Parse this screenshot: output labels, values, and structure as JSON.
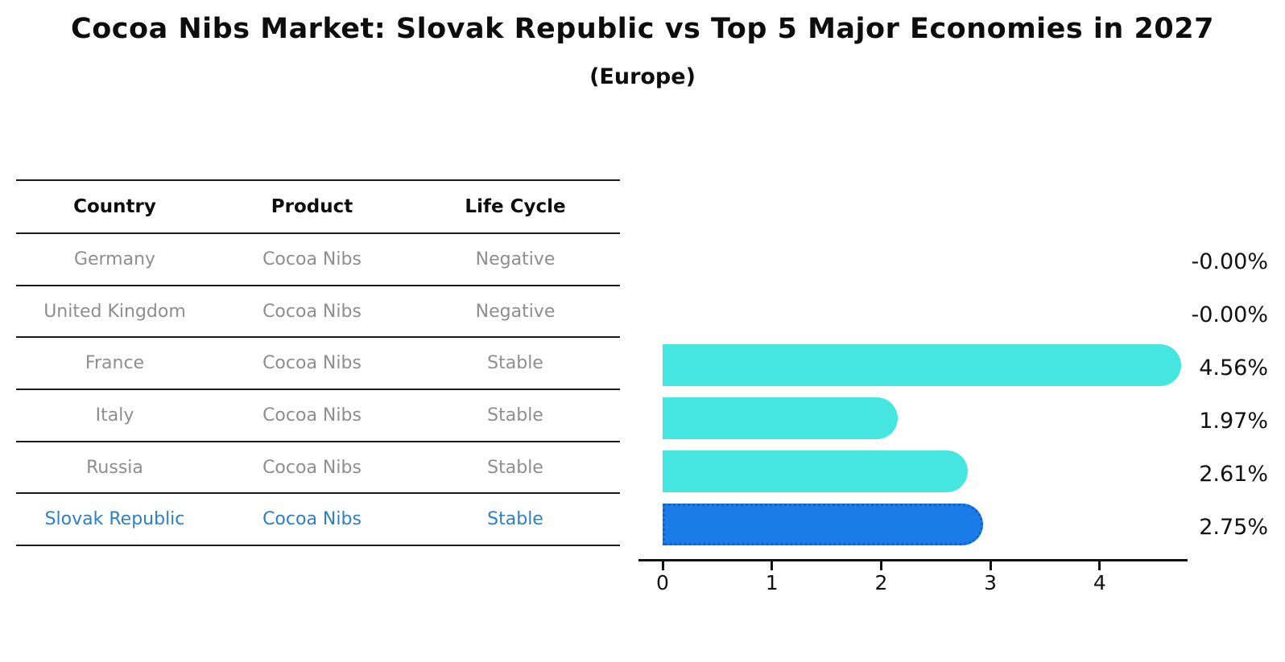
{
  "title": "Cocoa Nibs Market: Slovak Republic vs Top 5 Major Economies in 2027",
  "subtitle": "(Europe)",
  "table": {
    "headers": [
      "Country",
      "Product",
      "Life Cycle"
    ],
    "rows": [
      {
        "country": "Germany",
        "product": "Cocoa Nibs",
        "life_cycle": "Negative",
        "highlight": false
      },
      {
        "country": "United Kingdom",
        "product": "Cocoa Nibs",
        "life_cycle": "Negative",
        "highlight": false
      },
      {
        "country": "France",
        "product": "Cocoa Nibs",
        "life_cycle": "Stable",
        "highlight": false
      },
      {
        "country": "Italy",
        "product": "Cocoa Nibs",
        "life_cycle": "Stable",
        "highlight": false
      },
      {
        "country": "Russia",
        "product": "Cocoa Nibs",
        "life_cycle": "Stable",
        "highlight": false
      },
      {
        "country": "Slovak Republic",
        "product": "Cocoa Nibs",
        "life_cycle": "Stable",
        "highlight": true
      }
    ]
  },
  "chart_data": {
    "type": "bar",
    "orientation": "horizontal",
    "title": "Cocoa Nibs Market: Slovak Republic vs Top 5 Major Economies in 2027",
    "subtitle": "(Europe)",
    "categories": [
      "Germany",
      "United Kingdom",
      "France",
      "Italy",
      "Russia",
      "Slovak Republic"
    ],
    "values": [
      -0.0,
      -0.0,
      4.56,
      1.97,
      2.61,
      2.75
    ],
    "value_labels": [
      "-0.00%",
      "-0.00%",
      "4.56%",
      "1.97%",
      "2.61%",
      "2.75%"
    ],
    "xlabel": "",
    "ylabel": "",
    "xticks": [
      0,
      1,
      2,
      3,
      4
    ],
    "xlim": [
      0,
      4.8
    ],
    "grid": false,
    "legend": false,
    "highlight_index": 5,
    "bar_color": "#46e6e0",
    "highlight_color": "#1b7ce8",
    "highlight_text_color": "#2b80c8",
    "axis_color": "#111111"
  }
}
